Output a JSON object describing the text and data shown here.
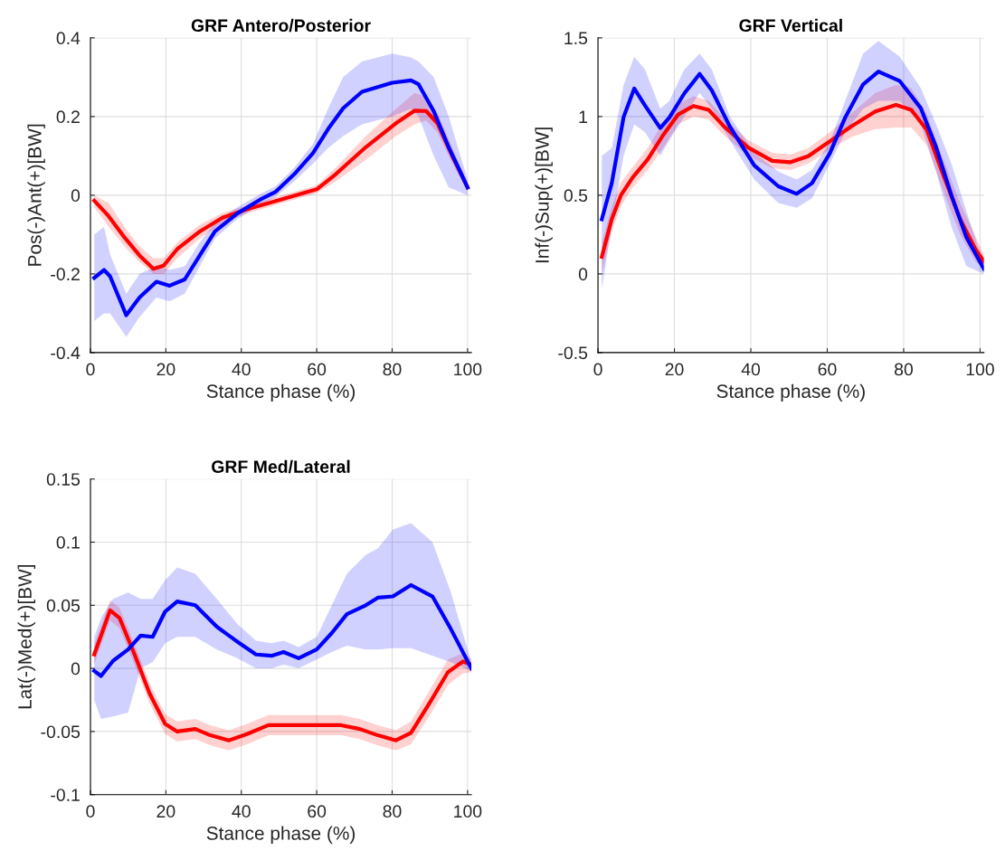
{
  "chart_data": [
    {
      "type": "line",
      "title": "GRF Antero/Posterior",
      "xlabel": "Stance phase (%)",
      "ylabel": "Pos(-)Ant(+)[BW]",
      "xlim": [
        0,
        101
      ],
      "xticks": [
        0,
        20,
        40,
        60,
        80,
        100
      ],
      "ylim": [
        -0.4,
        0.4
      ],
      "yticks": [
        -0.4,
        -0.2,
        0,
        0.2,
        0.4
      ],
      "grid": true,
      "line_style": "solid",
      "marker": "none",
      "series": [
        {
          "color": "#ff0000",
          "x": [
            1,
            4.8,
            9,
            13,
            16.7,
            19.4,
            23,
            29,
            35,
            42,
            49,
            60,
            65,
            73,
            81,
            86,
            89,
            92,
            96,
            100
          ],
          "values": [
            -0.014,
            -0.053,
            -0.107,
            -0.153,
            -0.187,
            -0.179,
            -0.137,
            -0.092,
            -0.057,
            -0.034,
            -0.015,
            0.015,
            0.053,
            0.122,
            0.183,
            0.215,
            0.214,
            0.183,
            0.099,
            0.02
          ],
          "lower": [
            -0.03,
            -0.08,
            -0.13,
            -0.17,
            -0.2,
            -0.2,
            -0.16,
            -0.11,
            -0.07,
            -0.045,
            -0.025,
            0.005,
            0.035,
            0.09,
            0.15,
            0.18,
            0.19,
            0.16,
            0.08,
            0.01
          ],
          "upper": [
            0.0,
            -0.02,
            -0.08,
            -0.13,
            -0.16,
            -0.16,
            -0.12,
            -0.075,
            -0.045,
            -0.025,
            -0.005,
            0.025,
            0.07,
            0.15,
            0.22,
            0.26,
            0.25,
            0.21,
            0.12,
            0.03
          ]
        },
        {
          "color": "#0000ff",
          "x": [
            1,
            3.6,
            5.2,
            9.5,
            13,
            17.5,
            21,
            25,
            29,
            33,
            39,
            45,
            49,
            54,
            59,
            63,
            67,
            72,
            80,
            85,
            87,
            91,
            95,
            100
          ],
          "values": [
            -0.21,
            -0.19,
            -0.206,
            -0.305,
            -0.26,
            -0.22,
            -0.23,
            -0.214,
            -0.153,
            -0.092,
            -0.046,
            -0.011,
            0.008,
            0.053,
            0.107,
            0.168,
            0.221,
            0.263,
            0.286,
            0.292,
            0.282,
            0.214,
            0.122,
            0.02
          ],
          "lower": [
            -0.32,
            -0.3,
            -0.3,
            -0.36,
            -0.31,
            -0.26,
            -0.27,
            -0.25,
            -0.18,
            -0.11,
            -0.06,
            -0.025,
            -0.005,
            0.035,
            0.08,
            0.12,
            0.15,
            0.18,
            0.2,
            0.22,
            0.2,
            0.1,
            0.02,
            0.0
          ],
          "upper": [
            -0.1,
            -0.08,
            -0.15,
            -0.25,
            -0.2,
            -0.18,
            -0.19,
            -0.18,
            -0.12,
            -0.07,
            -0.03,
            0.003,
            0.022,
            0.07,
            0.13,
            0.22,
            0.3,
            0.34,
            0.36,
            0.35,
            0.34,
            0.3,
            0.2,
            0.04
          ]
        }
      ]
    },
    {
      "type": "line",
      "title": "GRF Vertical",
      "xlabel": "Stance phase (%)",
      "ylabel": "Inf(-)Sup(+)[BW]",
      "xlim": [
        0,
        101
      ],
      "xticks": [
        0,
        20,
        40,
        60,
        80,
        100
      ],
      "ylim": [
        -0.5,
        1.5
      ],
      "yticks": [
        -0.5,
        0,
        0.5,
        1,
        1.5
      ],
      "grid": true,
      "line_style": "solid",
      "marker": "none",
      "series": [
        {
          "color": "#ff0000",
          "x": [
            1,
            3.6,
            6,
            9.1,
            13,
            17,
            21,
            25,
            29,
            33,
            39.3,
            45.6,
            50.4,
            55,
            60.7,
            66.3,
            72.6,
            78,
            82,
            86,
            90,
            94.8,
            98.8,
            101
          ],
          "values": [
            0.109,
            0.347,
            0.5,
            0.614,
            0.727,
            0.88,
            1.013,
            1.067,
            1.042,
            0.937,
            0.803,
            0.718,
            0.71,
            0.748,
            0.843,
            0.937,
            1.032,
            1.074,
            1.042,
            0.918,
            0.653,
            0.347,
            0.156,
            0.08
          ],
          "lower": [
            0.0,
            0.27,
            0.43,
            0.55,
            0.66,
            0.8,
            0.95,
            1.0,
            0.98,
            0.88,
            0.75,
            0.67,
            0.66,
            0.7,
            0.79,
            0.87,
            0.92,
            0.93,
            0.93,
            0.82,
            0.55,
            0.25,
            0.08,
            0.03
          ],
          "upper": [
            0.2,
            0.43,
            0.58,
            0.68,
            0.8,
            0.96,
            1.08,
            1.13,
            1.1,
            0.99,
            0.85,
            0.77,
            0.76,
            0.8,
            0.9,
            1.02,
            1.15,
            1.2,
            1.18,
            1.02,
            0.75,
            0.45,
            0.24,
            0.12
          ]
        },
        {
          "color": "#0000ff",
          "x": [
            1,
            3.6,
            6.7,
            9.5,
            12.3,
            16.3,
            18.7,
            22.6,
            26.6,
            29.8,
            34.5,
            40.9,
            47.2,
            52,
            56,
            60.7,
            64.7,
            69.4,
            73.4,
            79,
            84.5,
            88.5,
            92.5,
            96.4,
            101
          ],
          "values": [
            0.347,
            0.576,
            0.996,
            1.178,
            1.07,
            0.927,
            0.994,
            1.147,
            1.271,
            1.166,
            0.937,
            0.69,
            0.557,
            0.509,
            0.576,
            0.767,
            0.994,
            1.204,
            1.286,
            1.225,
            1.053,
            0.805,
            0.5,
            0.233,
            0.032
          ],
          "lower": [
            -0.1,
            0.3,
            0.75,
            0.95,
            0.9,
            0.75,
            0.85,
            1.0,
            1.15,
            1.05,
            0.85,
            0.6,
            0.45,
            0.42,
            0.48,
            0.7,
            0.9,
            1.05,
            1.1,
            1.1,
            0.95,
            0.65,
            0.3,
            0.05,
            0.0
          ],
          "upper": [
            0.75,
            0.8,
            1.2,
            1.38,
            1.3,
            1.05,
            1.1,
            1.3,
            1.4,
            1.3,
            1.0,
            0.77,
            0.65,
            0.6,
            0.66,
            0.84,
            1.1,
            1.4,
            1.48,
            1.38,
            1.18,
            0.95,
            0.7,
            0.4,
            0.06
          ]
        }
      ]
    },
    {
      "type": "line",
      "title": "GRF Med/Lateral",
      "xlabel": "Stance phase (%)",
      "ylabel": "Lat(-)Med(+)[BW]",
      "xlim": [
        0,
        101
      ],
      "xticks": [
        0,
        20,
        40,
        60,
        80,
        100
      ],
      "ylim": [
        -0.1,
        0.15
      ],
      "yticks": [
        -0.1,
        -0.05,
        0,
        0.05,
        0.1,
        0.15
      ],
      "grid": true,
      "line_style": "solid",
      "marker": "none",
      "series": [
        {
          "color": "#ff0000",
          "x": [
            1,
            5.2,
            7.7,
            11.7,
            15.7,
            19.8,
            23,
            27.8,
            31.8,
            36.7,
            41.5,
            47.2,
            53.6,
            60,
            66.5,
            71.4,
            76.2,
            81,
            85,
            90,
            94.8,
            98.8,
            101
          ],
          "values": [
            0.011,
            0.046,
            0.04,
            0.011,
            -0.02,
            -0.044,
            -0.05,
            -0.048,
            -0.053,
            -0.057,
            -0.052,
            -0.045,
            -0.045,
            -0.045,
            -0.045,
            -0.048,
            -0.053,
            -0.057,
            -0.051,
            -0.027,
            -0.003,
            0.0055,
            0.003
          ],
          "lower": [
            0.003,
            0.038,
            0.032,
            0.003,
            -0.028,
            -0.052,
            -0.058,
            -0.056,
            -0.061,
            -0.065,
            -0.06,
            -0.053,
            -0.053,
            -0.053,
            -0.053,
            -0.056,
            -0.061,
            -0.065,
            -0.06,
            -0.037,
            -0.013,
            -0.004,
            -0.003
          ],
          "upper": [
            0.019,
            0.054,
            0.048,
            0.019,
            -0.012,
            -0.036,
            -0.042,
            -0.04,
            -0.045,
            -0.049,
            -0.044,
            -0.037,
            -0.037,
            -0.037,
            -0.037,
            -0.04,
            -0.045,
            -0.049,
            -0.042,
            -0.017,
            0.007,
            0.012,
            0.008
          ]
        },
        {
          "color": "#0000ff",
          "x": [
            1,
            2.8,
            6,
            10,
            13.3,
            16.5,
            19.8,
            23,
            27.8,
            33.5,
            39,
            43.9,
            48,
            51.2,
            55.2,
            60,
            64,
            68,
            73,
            76.2,
            80.2,
            85,
            90.7,
            95.6,
            101
          ],
          "values": [
            -0.002,
            -0.006,
            0.006,
            0.015,
            0.026,
            0.025,
            0.045,
            0.053,
            0.05,
            0.033,
            0.021,
            0.011,
            0.01,
            0.013,
            0.008,
            0.015,
            0.028,
            0.043,
            0.05,
            0.056,
            0.057,
            0.066,
            0.057,
            0.031,
            0.0
          ],
          "lower": [
            -0.025,
            -0.04,
            -0.038,
            -0.035,
            0.0,
            0.005,
            0.02,
            0.025,
            0.025,
            0.015,
            0.008,
            0.0,
            0.0,
            0.003,
            0.0,
            0.007,
            0.013,
            0.018,
            0.015,
            0.015,
            0.016,
            0.016,
            0.01,
            0.005,
            -0.002
          ],
          "upper": [
            0.025,
            0.04,
            0.055,
            0.06,
            0.055,
            0.055,
            0.07,
            0.08,
            0.075,
            0.055,
            0.035,
            0.022,
            0.02,
            0.022,
            0.017,
            0.025,
            0.05,
            0.075,
            0.09,
            0.095,
            0.11,
            0.115,
            0.1,
            0.06,
            0.005
          ]
        }
      ]
    }
  ]
}
